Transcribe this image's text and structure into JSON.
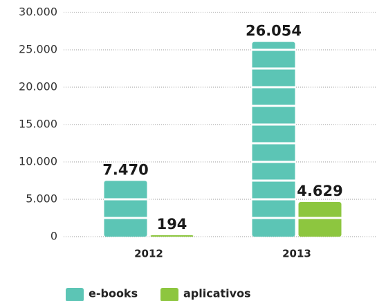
{
  "chart_data": {
    "type": "bar",
    "categories": [
      "2012",
      "2013"
    ],
    "series": [
      {
        "name": "e-books",
        "color": "#5cc5b5",
        "values": [
          7470,
          26054
        ],
        "value_labels": [
          "7.470",
          "26.054"
        ]
      },
      {
        "name": "aplicativos",
        "color": "#8dc63f",
        "values": [
          194,
          4629
        ],
        "value_labels": [
          "194",
          "4.629"
        ]
      }
    ],
    "ylim": [
      0,
      30000
    ],
    "yticks": [
      0,
      {
        "value": 5000,
        "label": "5.000"
      },
      {
        "value": 10000,
        "label": "10.000"
      },
      {
        "value": 15000,
        "label": "15.000"
      },
      {
        "value": 20000,
        "label": "20.000"
      },
      {
        "value": 25000,
        "label": "25.000"
      },
      {
        "value": 30000,
        "label": "30.000"
      }
    ],
    "grid": true
  }
}
